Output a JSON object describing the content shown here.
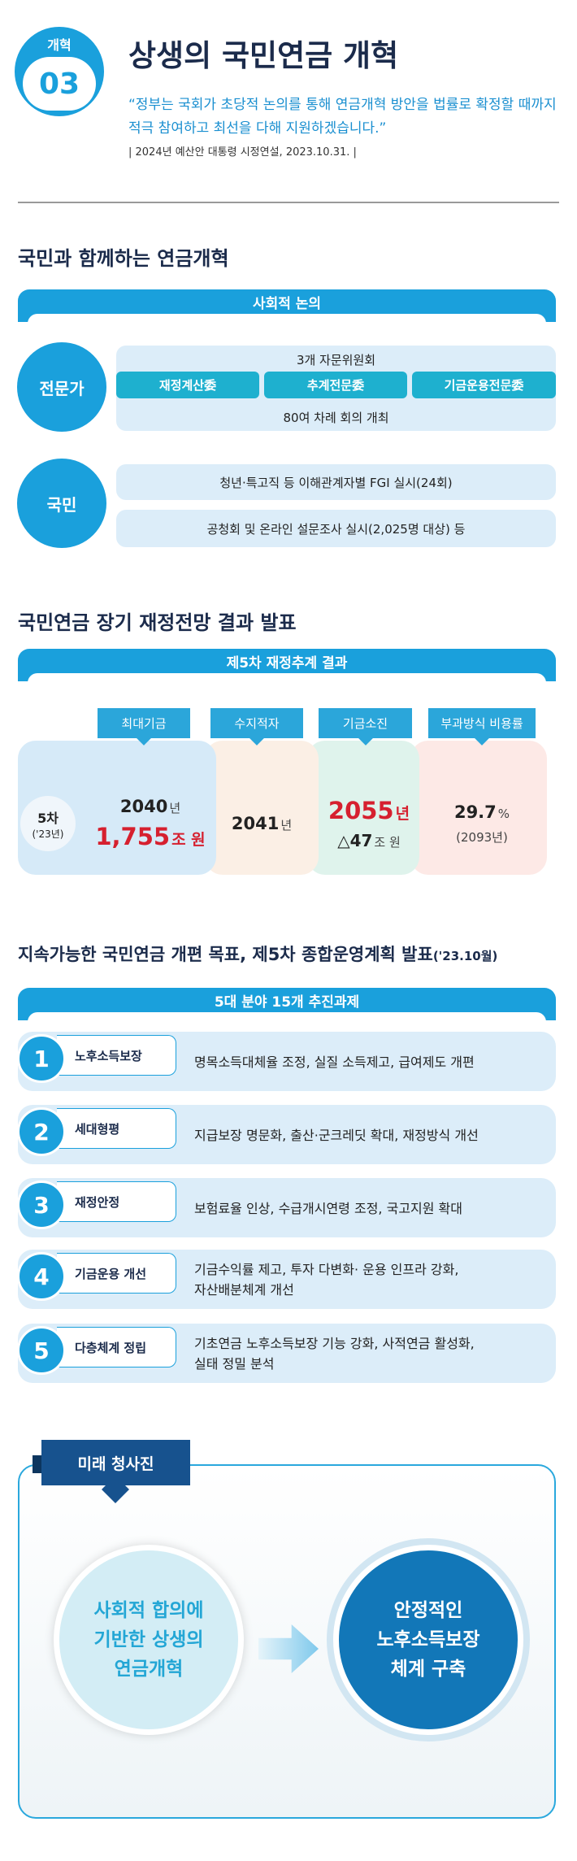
{
  "header": {
    "badge_label": "개혁",
    "badge_number": "03",
    "title": "상생의 국민연금 개혁",
    "quote": [
      "“정부는 국회가 초당적 논의를 통해 연금개혁 방안을 법률로 확정할 때까지",
      "적극 참여하고 최선을 다해 지원하겠습니다.”"
    ],
    "source": "| 2024년 예산안 대통령 시정연설, 2023.10.31. |"
  },
  "section1": {
    "heading": "국민과 함께하는 연금개혁",
    "bar": "사회적 논의",
    "experts": {
      "label": "전문가",
      "committee_title": "3개 자문위원회",
      "committees": [
        "재정계산委",
        "추계전문委",
        "기금운용전문委"
      ],
      "meetings": "80여 차례 회의 개최"
    },
    "public": {
      "label": "국민",
      "items": [
        "청년·특고직 등 이해관계자별 FGI 실시(24회)",
        "공청회 및 온라인 설문조사 실시(2,025명 대상) 등"
      ]
    }
  },
  "section2": {
    "heading": "국민연금 장기 재정전망 결과 발표",
    "bar": "제5차 재정추계 결과",
    "round": {
      "label": "5차",
      "sub": "('23년)"
    },
    "results": [
      {
        "tag": "최대기금",
        "lines": [
          {
            "value": "2040",
            "unit": "년"
          },
          {
            "value": "1,755",
            "unit": "조 원"
          }
        ]
      },
      {
        "tag": "수지적자",
        "lines": [
          {
            "value": "2041",
            "unit": "년"
          }
        ]
      },
      {
        "tag": "기금소진",
        "lines": [
          {
            "value": "2055",
            "unit": "년"
          },
          {
            "value": "△47",
            "unit": "조 원"
          }
        ]
      },
      {
        "tag": "부과방식 비용률",
        "lines": [
          {
            "value": "29.7",
            "unit": "%"
          },
          {
            "value": "(2093년)"
          }
        ]
      }
    ]
  },
  "section3": {
    "heading": "지속가능한 국민연금 개편 목표, 제5차 종합운영계획 발표",
    "heading_note": "('23.10월)",
    "bar": "5대 분야 15개 추진과제",
    "tasks": [
      {
        "number": "1",
        "label": "노후소득보장",
        "text": [
          "명목소득대체율 조정, 실질 소득제고, 급여제도 개편"
        ]
      },
      {
        "number": "2",
        "label": "세대형평",
        "text": [
          "지급보장 명문화, 출산·군크레딧 확대, 재정방식 개선"
        ]
      },
      {
        "number": "3",
        "label": "재정안정",
        "text": [
          "보험료율 인상, 수급개시연령 조정, 국고지원 확대"
        ]
      },
      {
        "number": "4",
        "label": "기금운용 개선",
        "text": [
          "기금수익률 제고, 투자 다변화· 운용 인프라 강화,",
          "자산배분체계 개선"
        ]
      },
      {
        "number": "5",
        "label": "다층체계 정립",
        "text": [
          "기초연금 노후소득보장 기능 강화, 사적연금 활성화,",
          "실태 정밀 분석"
        ]
      }
    ]
  },
  "future": {
    "tag": "미래 청사진",
    "from": [
      "사회적 합의에",
      "기반한 상생의",
      "연금개혁"
    ],
    "to": [
      "안정적인",
      "노후소득보장",
      "체계 구축"
    ]
  }
}
